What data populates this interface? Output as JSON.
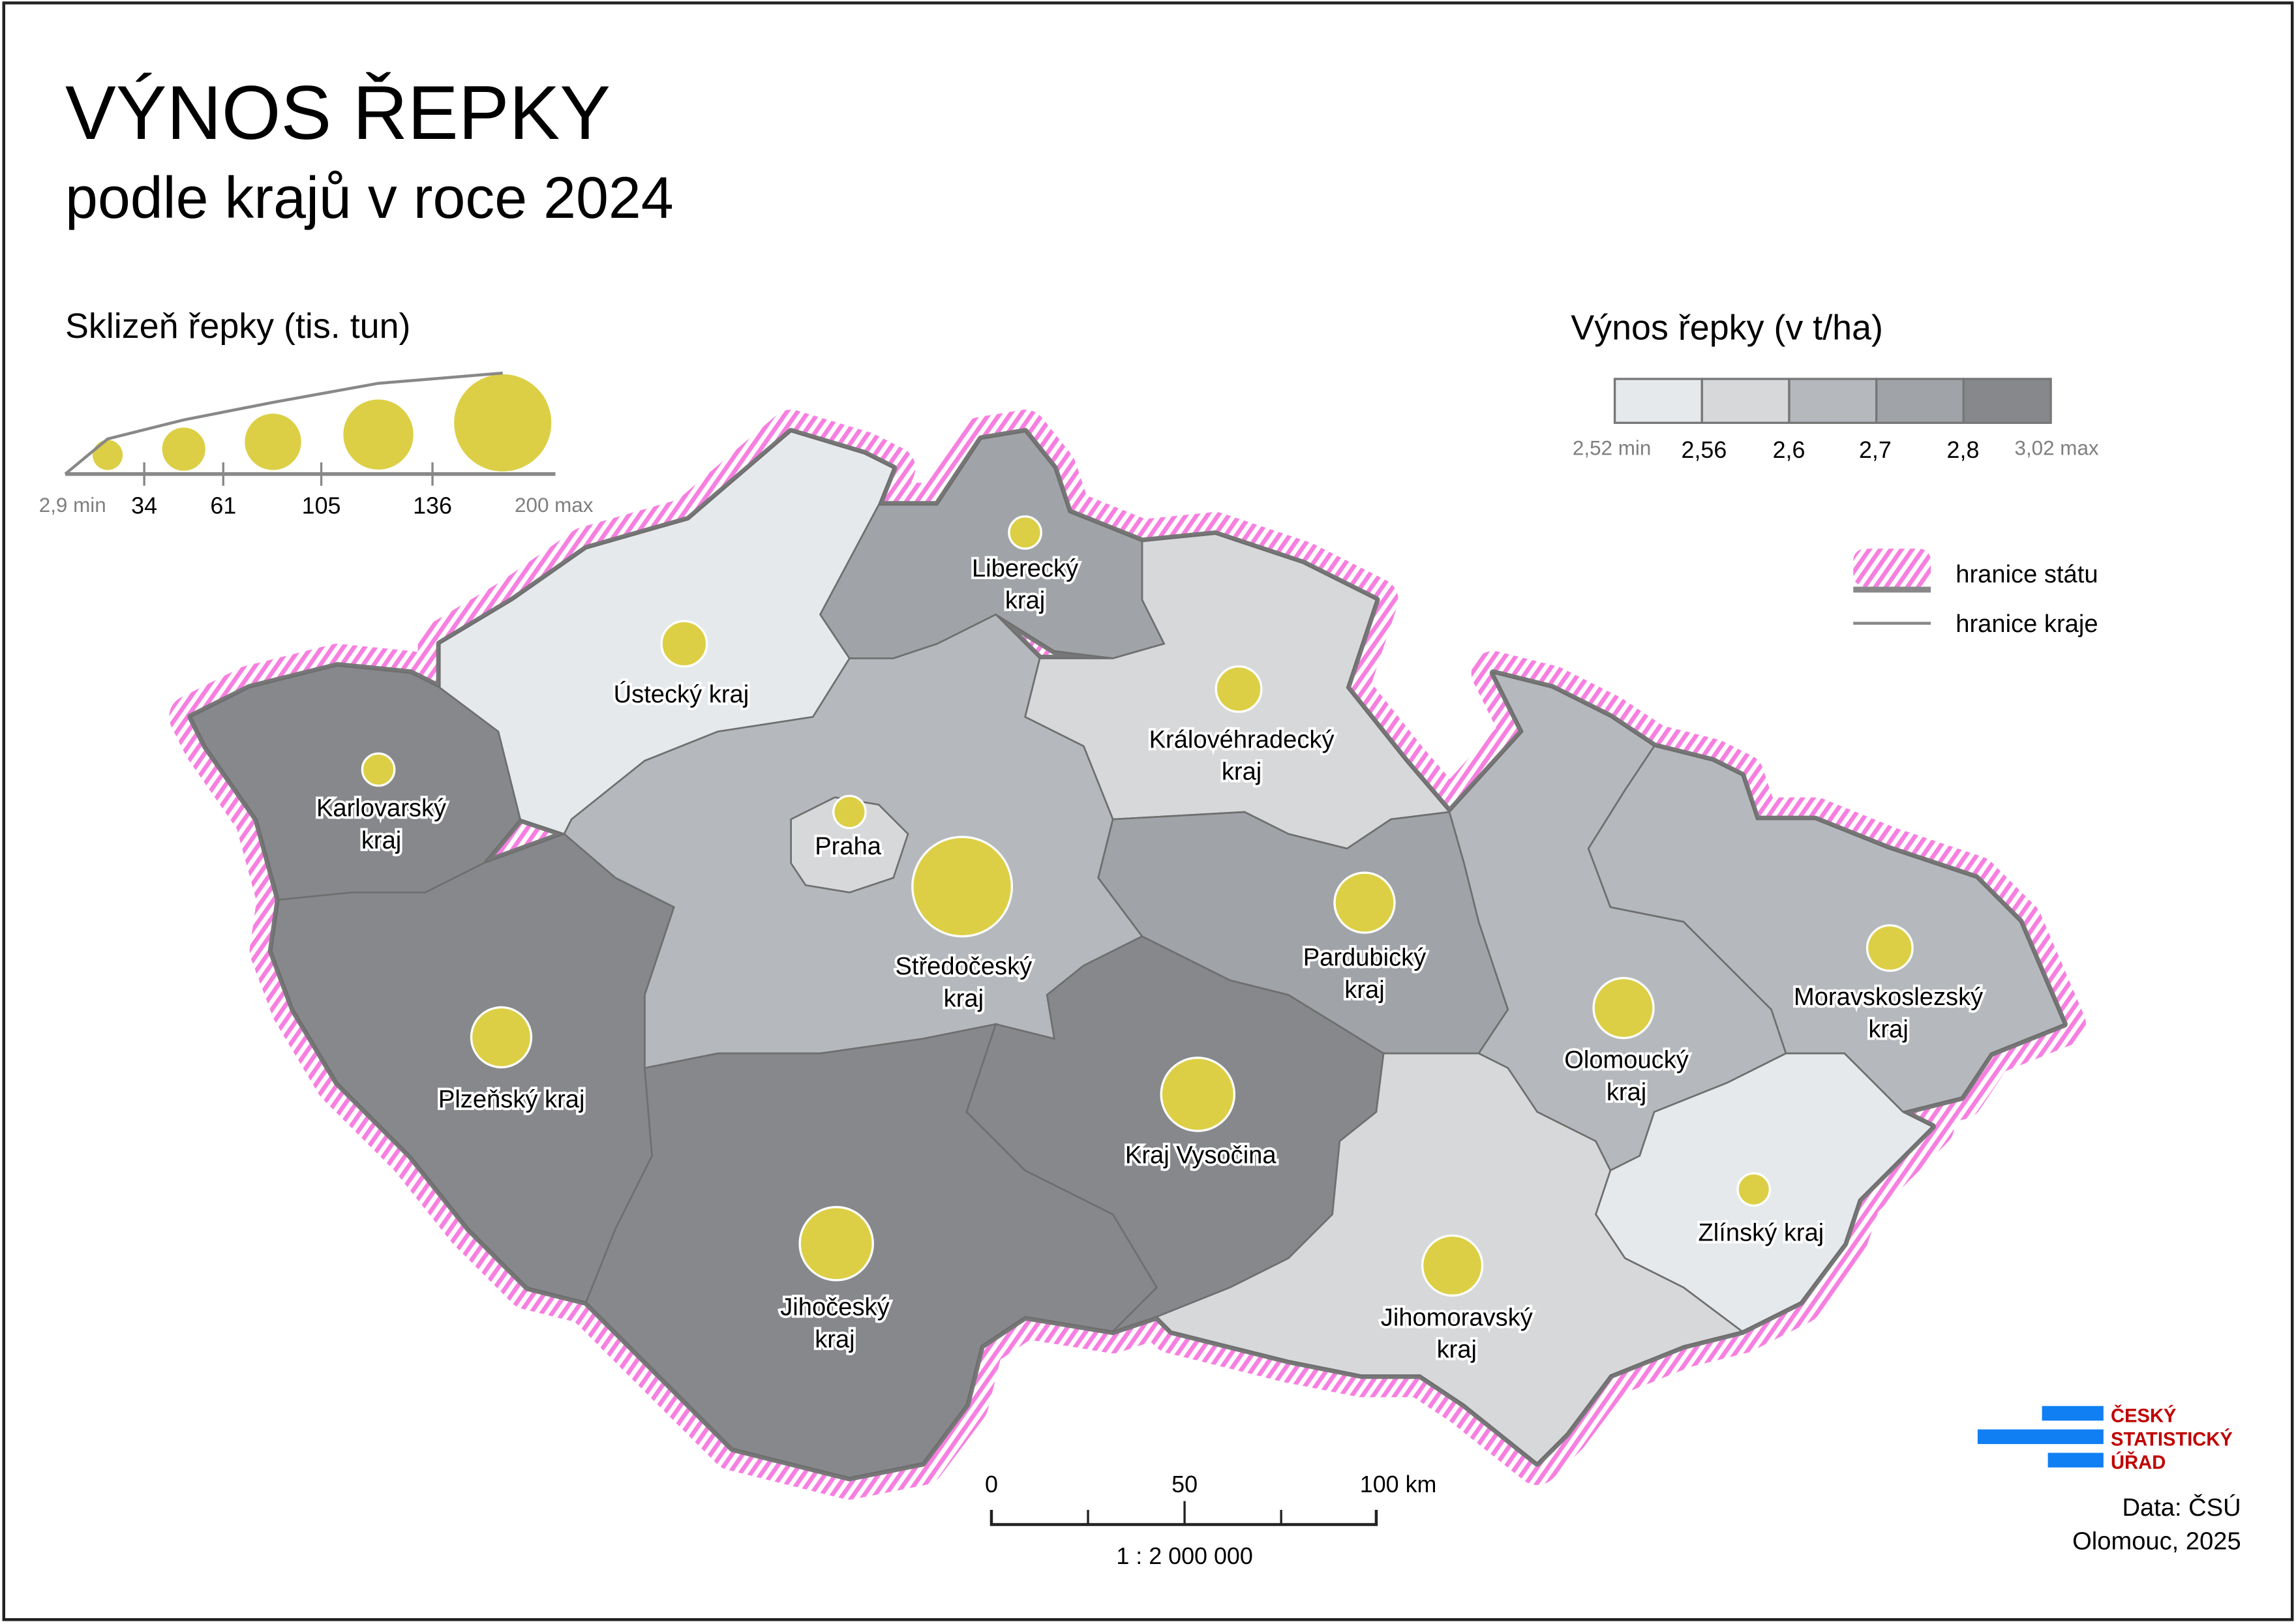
{
  "title": "VÝNOS ŘEPKY",
  "subtitle": "podle krajů v roce 2024",
  "harvest_legend": {
    "title": "Sklizeň řepky (tis. tun)",
    "min_label": "2,9 min",
    "breaks": [
      "34",
      "61",
      "105",
      "136"
    ],
    "max_label": "200 max"
  },
  "yield_legend": {
    "title": "Výnos řepky (v t/ha)",
    "min_label": "2,52 min",
    "breaks": [
      "2,56",
      "2,6",
      "2,7",
      "2,8"
    ],
    "max_label": "3,02 max",
    "colors": [
      "#e6e9ec",
      "#d7d8da",
      "#b5b8bc",
      "#a0a3a7",
      "#86888c"
    ]
  },
  "boundary_legend": {
    "state": "hranice státu",
    "region": "hranice kraje",
    "state_color": "#f77fe0"
  },
  "bubble_color": "#dccf45",
  "regions": [
    {
      "name": "Karlovarský kraj",
      "label": [
        "Karlovarský",
        "kraj"
      ],
      "yield_class": 5,
      "harvest_class": 1
    },
    {
      "name": "Ústecký kraj",
      "label": [
        "Ústecký kraj"
      ],
      "yield_class": 1,
      "harvest_class": 2
    },
    {
      "name": "Liberecký kraj",
      "label": [
        "Liberecký",
        "kraj"
      ],
      "yield_class": 4,
      "harvest_class": 1
    },
    {
      "name": "Královéhradecký kraj",
      "label": [
        "Královéhradecký",
        "kraj"
      ],
      "yield_class": 2,
      "harvest_class": 2
    },
    {
      "name": "Středočeský kraj",
      "label": [
        "Středočeský",
        "kraj"
      ],
      "yield_class": 3,
      "harvest_class": 5
    },
    {
      "name": "Praha",
      "label": [
        "Praha"
      ],
      "yield_class": 2,
      "harvest_class": 1
    },
    {
      "name": "Plzeňský kraj",
      "label": [
        "Plzeňský kraj"
      ],
      "yield_class": 5,
      "harvest_class": 3
    },
    {
      "name": "Jihočeský kraj",
      "label": [
        "Jihočeský",
        "kraj"
      ],
      "yield_class": 5,
      "harvest_class": 4
    },
    {
      "name": "Kraj Vysočina",
      "label": [
        "Kraj Vysočina"
      ],
      "yield_class": 5,
      "harvest_class": 4
    },
    {
      "name": "Pardubický kraj",
      "label": [
        "Pardubický",
        "kraj"
      ],
      "yield_class": 4,
      "harvest_class": 3
    },
    {
      "name": "Olomoucký kraj",
      "label": [
        "Olomoucký",
        "kraj"
      ],
      "yield_class": 3,
      "harvest_class": 3
    },
    {
      "name": "Moravskoslezský kraj",
      "label": [
        "Moravskoslezský",
        "kraj"
      ],
      "yield_class": 3,
      "harvest_class": 2
    },
    {
      "name": "Zlínský kraj",
      "label": [
        "Zlínský kraj"
      ],
      "yield_class": 1,
      "harvest_class": 1
    },
    {
      "name": "Jihomoravský kraj",
      "label": [
        "Jihomoravský",
        "kraj"
      ],
      "yield_class": 2,
      "harvest_class": 3
    }
  ],
  "scale_bar": {
    "ticks": [
      "0",
      "50",
      "100 km"
    ],
    "ratio": "1 : 2 000 000"
  },
  "logo": {
    "lines": [
      "ČESKÝ",
      "STATISTICKÝ",
      "ÚŘAD"
    ],
    "bar_color": "#0f7ff3",
    "text_color": "#c00000"
  },
  "credits": {
    "data": "Data: ČSÚ",
    "place_year": "Olomouc, 2025"
  }
}
